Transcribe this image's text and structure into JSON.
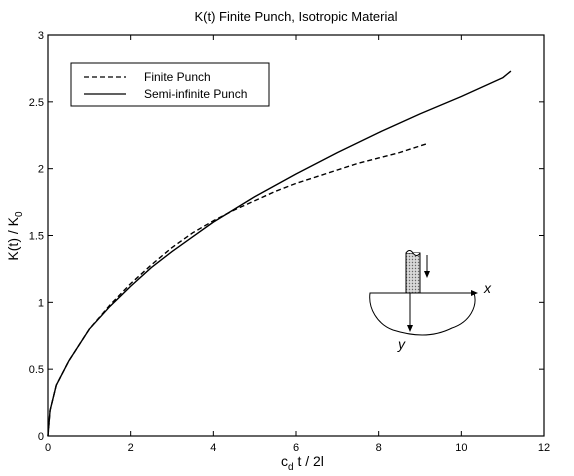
{
  "chart_data": {
    "type": "line",
    "title": "K(t) Finite Punch, Isotropic Material",
    "xlabel": {
      "main": "c",
      "sub": "d",
      "rest": " t / 2l"
    },
    "ylabel": {
      "main": "K(t) / K",
      "sub": "0"
    },
    "xlim": [
      0,
      12
    ],
    "ylim": [
      0,
      3
    ],
    "xticks": [
      0,
      2,
      4,
      6,
      8,
      10,
      12
    ],
    "yticks": [
      0,
      0.5,
      1,
      1.5,
      2,
      2.5,
      3
    ],
    "yticklabels": [
      "0",
      "0.5",
      "1",
      "1.5",
      "2",
      "2.5",
      "3"
    ],
    "grid": false,
    "legend_position": "top-left",
    "series": [
      {
        "name": "Finite Punch",
        "style": "dashed",
        "x": [
          0,
          0.05,
          0.2,
          0.5,
          1,
          1.5,
          2,
          2.5,
          3,
          3.5,
          4,
          4.5,
          5,
          5.5,
          6,
          6.5,
          7,
          7.5,
          8,
          8.5,
          9,
          9.2
        ],
        "y": [
          0,
          0.19,
          0.38,
          0.56,
          0.8,
          0.98,
          1.14,
          1.28,
          1.41,
          1.52,
          1.61,
          1.69,
          1.76,
          1.83,
          1.89,
          1.94,
          1.99,
          2.04,
          2.08,
          2.12,
          2.17,
          2.19
        ]
      },
      {
        "name": "Semi-infinite Punch",
        "style": "solid",
        "x": [
          0,
          0.05,
          0.2,
          0.5,
          1,
          1.5,
          2,
          2.5,
          3,
          3.5,
          4,
          5,
          6,
          7,
          8,
          9,
          10,
          11,
          11.2
        ],
        "y": [
          0,
          0.19,
          0.38,
          0.56,
          0.8,
          0.97,
          1.12,
          1.26,
          1.38,
          1.49,
          1.6,
          1.79,
          1.96,
          2.12,
          2.27,
          2.41,
          2.54,
          2.68,
          2.73
        ]
      }
    ]
  },
  "inset": {
    "x_label": "x",
    "y_label": "y"
  }
}
